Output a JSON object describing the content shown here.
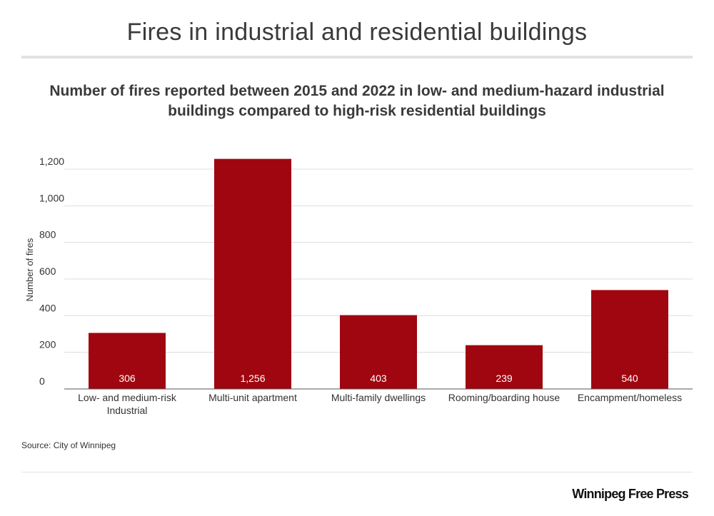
{
  "header": {
    "title": "Fires in industrial and residential buildings",
    "subtitle": "Number of fires reported between 2015 and 2022 in low- and medium-hazard industrial buildings compared to high-risk residential buildings"
  },
  "footer": {
    "source": "Source: City of Winnipeg",
    "brand": "Winnipeg Free Press"
  },
  "colors": {
    "bar": "#a0060f",
    "grid": "#dddddd",
    "text": "#333333",
    "bar_label": "#ffffff"
  },
  "chart_data": {
    "type": "bar",
    "title": "Number of fires reported between 2015 and 2022 in low- and medium-hazard industrial buildings compared to high-risk residential buildings",
    "xlabel": "",
    "ylabel": "Number of fires",
    "categories": [
      [
        "Low- and medium-risk",
        "Industrial"
      ],
      [
        "Multi-unit apartment"
      ],
      [
        "Multi-family dwellings"
      ],
      [
        "Rooming/boarding house"
      ],
      [
        "Encampment/homeless"
      ]
    ],
    "values": [
      306,
      1256,
      403,
      239,
      540
    ],
    "value_labels": [
      "306",
      "1,256",
      "403",
      "239",
      "540"
    ],
    "ylim": [
      0,
      1200
    ],
    "yticks": [
      0,
      200,
      400,
      600,
      800,
      1000,
      1200
    ],
    "ytick_labels": [
      "0",
      "200",
      "400",
      "600",
      "800",
      "1,000",
      "1,200"
    ],
    "grid": true
  }
}
